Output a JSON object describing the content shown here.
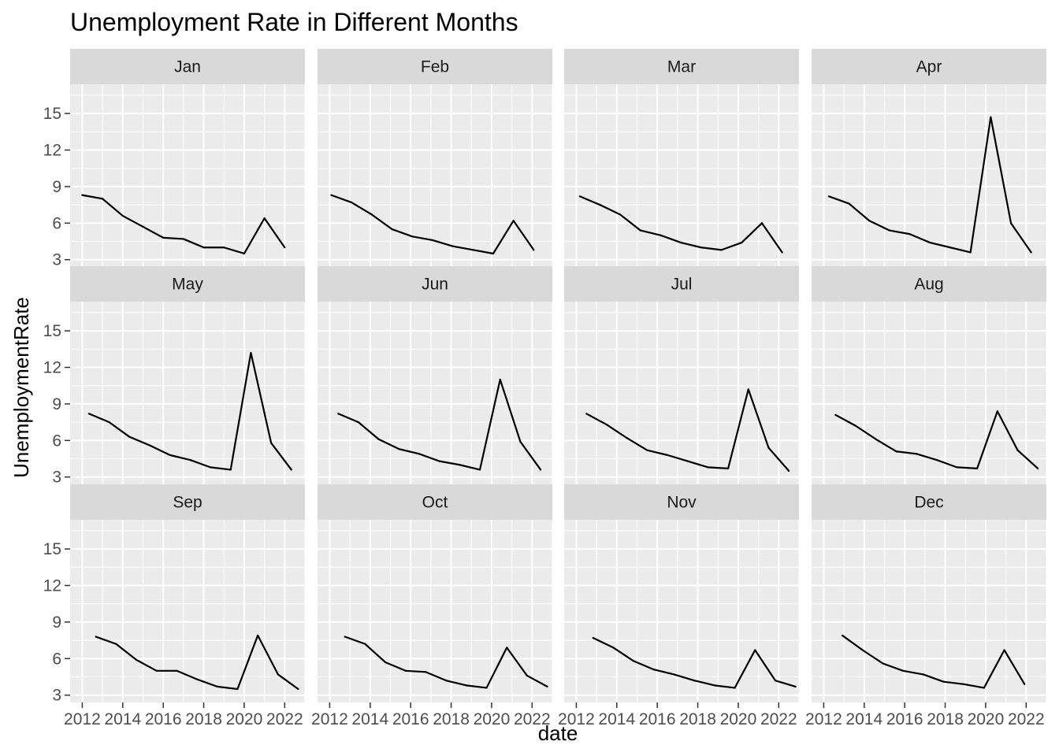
{
  "chart_data": {
    "type": "line",
    "title": "Unemployment Rate in Different Months",
    "xlabel": "date",
    "ylabel": "UnemploymentRate",
    "xlim": [
      2011.4,
      2023.0
    ],
    "ylim": [
      2.4,
      17.4
    ],
    "x_ticks": [
      2012,
      2014,
      2016,
      2018,
      2020,
      2022
    ],
    "x_tick_labels": [
      "2012",
      "2014",
      "2016",
      "2018",
      "2020",
      "2022"
    ],
    "y_ticks": [
      3,
      6,
      9,
      12,
      15
    ],
    "y_tick_labels": [
      "3",
      "6",
      "9",
      "12",
      "15"
    ],
    "facets": [
      {
        "name": "Jan",
        "x": [
          2012.0,
          2013.0,
          2014.0,
          2015.0,
          2016.0,
          2017.0,
          2018.0,
          2019.0,
          2020.0,
          2021.0,
          2022.0
        ],
        "values": [
          8.3,
          8.0,
          6.6,
          5.7,
          4.8,
          4.7,
          4.0,
          4.0,
          3.5,
          6.4,
          4.0
        ]
      },
      {
        "name": "Feb",
        "x": [
          2012.08,
          2013.08,
          2014.08,
          2015.08,
          2016.08,
          2017.08,
          2018.08,
          2019.08,
          2020.08,
          2021.08,
          2022.08
        ],
        "values": [
          8.3,
          7.7,
          6.7,
          5.5,
          4.9,
          4.6,
          4.1,
          3.8,
          3.5,
          6.2,
          3.8
        ]
      },
      {
        "name": "Mar",
        "x": [
          2012.17,
          2013.17,
          2014.17,
          2015.17,
          2016.17,
          2017.17,
          2018.17,
          2019.17,
          2020.17,
          2021.17,
          2022.17
        ],
        "values": [
          8.2,
          7.5,
          6.7,
          5.4,
          5.0,
          4.4,
          4.0,
          3.8,
          4.4,
          6.0,
          3.6
        ]
      },
      {
        "name": "Apr",
        "x": [
          2012.25,
          2013.25,
          2014.25,
          2015.25,
          2016.25,
          2017.25,
          2018.25,
          2019.25,
          2020.25,
          2021.25,
          2022.25
        ],
        "values": [
          8.2,
          7.6,
          6.2,
          5.4,
          5.1,
          4.4,
          4.0,
          3.6,
          14.7,
          6.0,
          3.6
        ]
      },
      {
        "name": "May",
        "x": [
          2012.33,
          2013.33,
          2014.33,
          2015.33,
          2016.33,
          2017.33,
          2018.33,
          2019.33,
          2020.33,
          2021.33,
          2022.33
        ],
        "values": [
          8.2,
          7.5,
          6.3,
          5.6,
          4.8,
          4.4,
          3.8,
          3.6,
          13.2,
          5.8,
          3.6
        ]
      },
      {
        "name": "Jun",
        "x": [
          2012.42,
          2013.42,
          2014.42,
          2015.42,
          2016.42,
          2017.42,
          2018.42,
          2019.42,
          2020.42,
          2021.42,
          2022.42
        ],
        "values": [
          8.2,
          7.5,
          6.1,
          5.3,
          4.9,
          4.3,
          4.0,
          3.6,
          11.0,
          5.9,
          3.6
        ]
      },
      {
        "name": "Jul",
        "x": [
          2012.5,
          2013.5,
          2014.5,
          2015.5,
          2016.5,
          2017.5,
          2018.5,
          2019.5,
          2020.5,
          2021.5,
          2022.5
        ],
        "values": [
          8.2,
          7.3,
          6.2,
          5.2,
          4.8,
          4.3,
          3.8,
          3.7,
          10.2,
          5.4,
          3.5
        ]
      },
      {
        "name": "Aug",
        "x": [
          2012.58,
          2013.58,
          2014.58,
          2015.58,
          2016.58,
          2017.58,
          2018.58,
          2019.58,
          2020.58,
          2021.58,
          2022.58
        ],
        "values": [
          8.1,
          7.2,
          6.1,
          5.1,
          4.9,
          4.4,
          3.8,
          3.7,
          8.4,
          5.2,
          3.7
        ]
      },
      {
        "name": "Sep",
        "x": [
          2012.67,
          2013.67,
          2014.67,
          2015.67,
          2016.67,
          2017.67,
          2018.67,
          2019.67,
          2020.67,
          2021.67,
          2022.67
        ],
        "values": [
          7.8,
          7.2,
          5.9,
          5.0,
          5.0,
          4.3,
          3.7,
          3.5,
          7.9,
          4.7,
          3.5
        ]
      },
      {
        "name": "Oct",
        "x": [
          2012.75,
          2013.75,
          2014.75,
          2015.75,
          2016.75,
          2017.75,
          2018.75,
          2019.75,
          2020.75,
          2021.75,
          2022.75
        ],
        "values": [
          7.8,
          7.2,
          5.7,
          5.0,
          4.9,
          4.2,
          3.8,
          3.6,
          6.9,
          4.6,
          3.7
        ]
      },
      {
        "name": "Nov",
        "x": [
          2012.83,
          2013.83,
          2014.83,
          2015.83,
          2016.83,
          2017.83,
          2018.83,
          2019.83,
          2020.83,
          2021.83,
          2022.83
        ],
        "values": [
          7.7,
          6.9,
          5.8,
          5.1,
          4.7,
          4.2,
          3.8,
          3.6,
          6.7,
          4.2,
          3.7
        ]
      },
      {
        "name": "Dec",
        "x": [
          2012.92,
          2013.92,
          2014.92,
          2015.92,
          2016.92,
          2017.92,
          2018.92,
          2019.92,
          2020.92,
          2021.92
        ],
        "values": [
          7.9,
          6.7,
          5.6,
          5.0,
          4.7,
          4.1,
          3.9,
          3.6,
          6.7,
          3.9
        ]
      }
    ]
  }
}
